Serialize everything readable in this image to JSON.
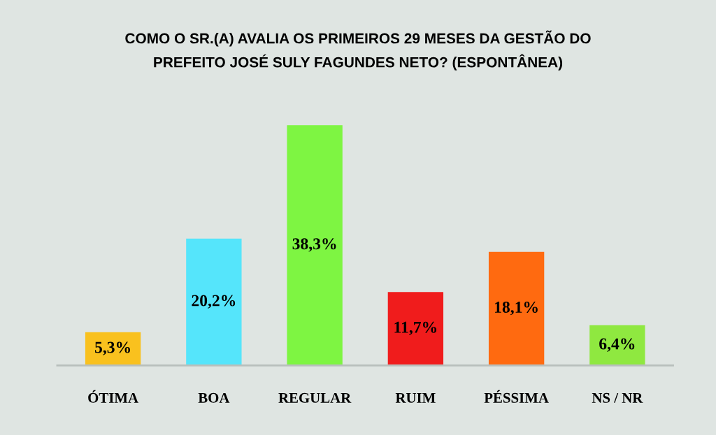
{
  "chart_data": {
    "type": "bar",
    "title": "COMO O SR.(A) AVALIA OS PRIMEIROS 29 MESES DA GESTÃO DO\nPREFEITO JOSÉ SULY FAGUNDES NETO? (ESPONTÂNEA)",
    "categories": [
      "ÓTIMA",
      "BOA",
      "REGULAR",
      "RUIM",
      "PÉSSIMA",
      "NS / NR"
    ],
    "values": [
      5.3,
      20.2,
      38.3,
      11.7,
      18.1,
      6.4
    ],
    "colors": [
      "#f9c11e",
      "#55e5fb",
      "#7ef542",
      "#f01c1c",
      "#ff6a10",
      "#8fe840"
    ],
    "value_labels": [
      "5,3%",
      "20,2%",
      "38,3%",
      "11,7%",
      "18,1%",
      "6,4%"
    ],
    "grid": false,
    "legend": false
  }
}
